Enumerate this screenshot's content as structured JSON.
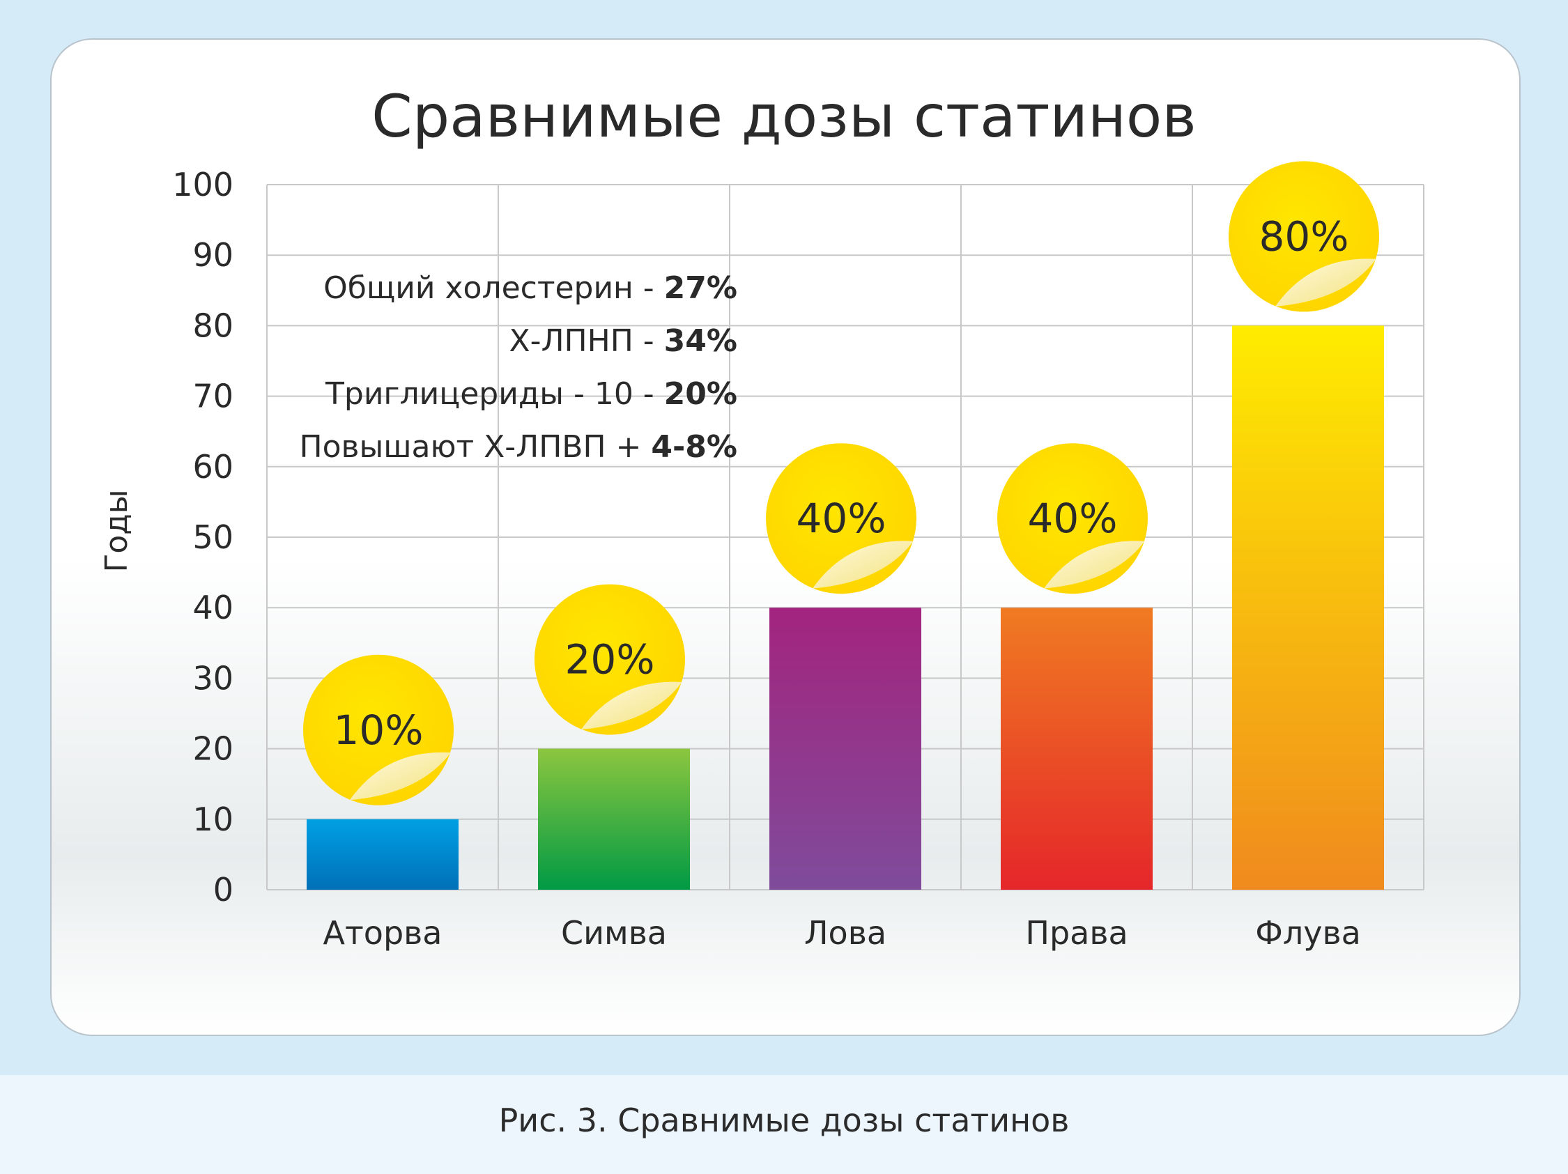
{
  "title": "Сравнимые дозы статинов",
  "caption": "Рис. 3. Сравнимые дозы статинов",
  "notes": [
    {
      "text": "Общий холестерин - ",
      "bold": "27%"
    },
    {
      "text": "Х-ЛПНП - ",
      "bold": "34%"
    },
    {
      "text": "Триглицериды - 10 - ",
      "bold": "20%"
    },
    {
      "text": "Повышают Х-ЛПВП + ",
      "bold": "4-8%"
    }
  ],
  "colors": {
    "badge": "#ffd600",
    "grid": "#c8c8c8",
    "bars": [
      [
        "#00a0e3",
        "#0070b8"
      ],
      [
        "#8cc63f",
        "#009a44"
      ],
      [
        "#a3247e",
        "#7f4b9b"
      ],
      [
        "#f07b22",
        "#e5262a"
      ],
      [
        "#ffec00",
        "#f08a1e"
      ]
    ]
  },
  "chart_data": {
    "type": "bar",
    "title": "Сравнимые дозы статинов",
    "ylabel": "Годы",
    "xlabel": "",
    "ylim": [
      0,
      100
    ],
    "yticks": [
      0,
      10,
      20,
      30,
      40,
      50,
      60,
      70,
      80,
      90,
      100
    ],
    "grid": true,
    "categories": [
      "Аторва",
      "Симва",
      "Лова",
      "Права",
      "Флува"
    ],
    "values": [
      10,
      20,
      40,
      40,
      80
    ],
    "data_labels": [
      "10%",
      "20%",
      "40%",
      "40%",
      "80%"
    ]
  }
}
